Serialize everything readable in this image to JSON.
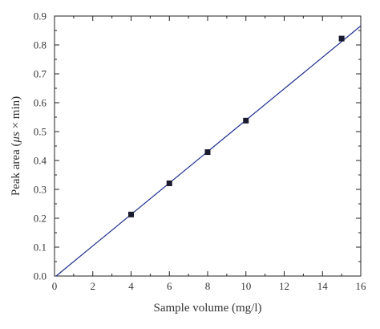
{
  "chart_data": {
    "type": "scatter",
    "title": "",
    "xlabel": "Sample volume (mg/l)",
    "ylabel_parts": [
      "Peak area (",
      "μs",
      " × min)"
    ],
    "xlim": [
      0,
      16
    ],
    "ylim": [
      0,
      0.9
    ],
    "x_ticks": [
      0,
      2,
      4,
      6,
      8,
      10,
      12,
      14,
      16
    ],
    "y_ticks": [
      "0.0",
      "0.1",
      "0.2",
      "0.3",
      "0.4",
      "0.5",
      "0.6",
      "0.7",
      "0.8",
      "0.9"
    ],
    "grid": false,
    "legend": "none",
    "series": [
      {
        "x": [
          4,
          6,
          8,
          10,
          15
        ],
        "y": [
          0.213,
          0.321,
          0.429,
          0.538,
          0.822
        ],
        "marker": "square",
        "color": "#1a1a2e"
      }
    ],
    "fit_line": {
      "color": "#1f2f8f",
      "slope": 0.0544,
      "intercept": -0.0045
    }
  }
}
